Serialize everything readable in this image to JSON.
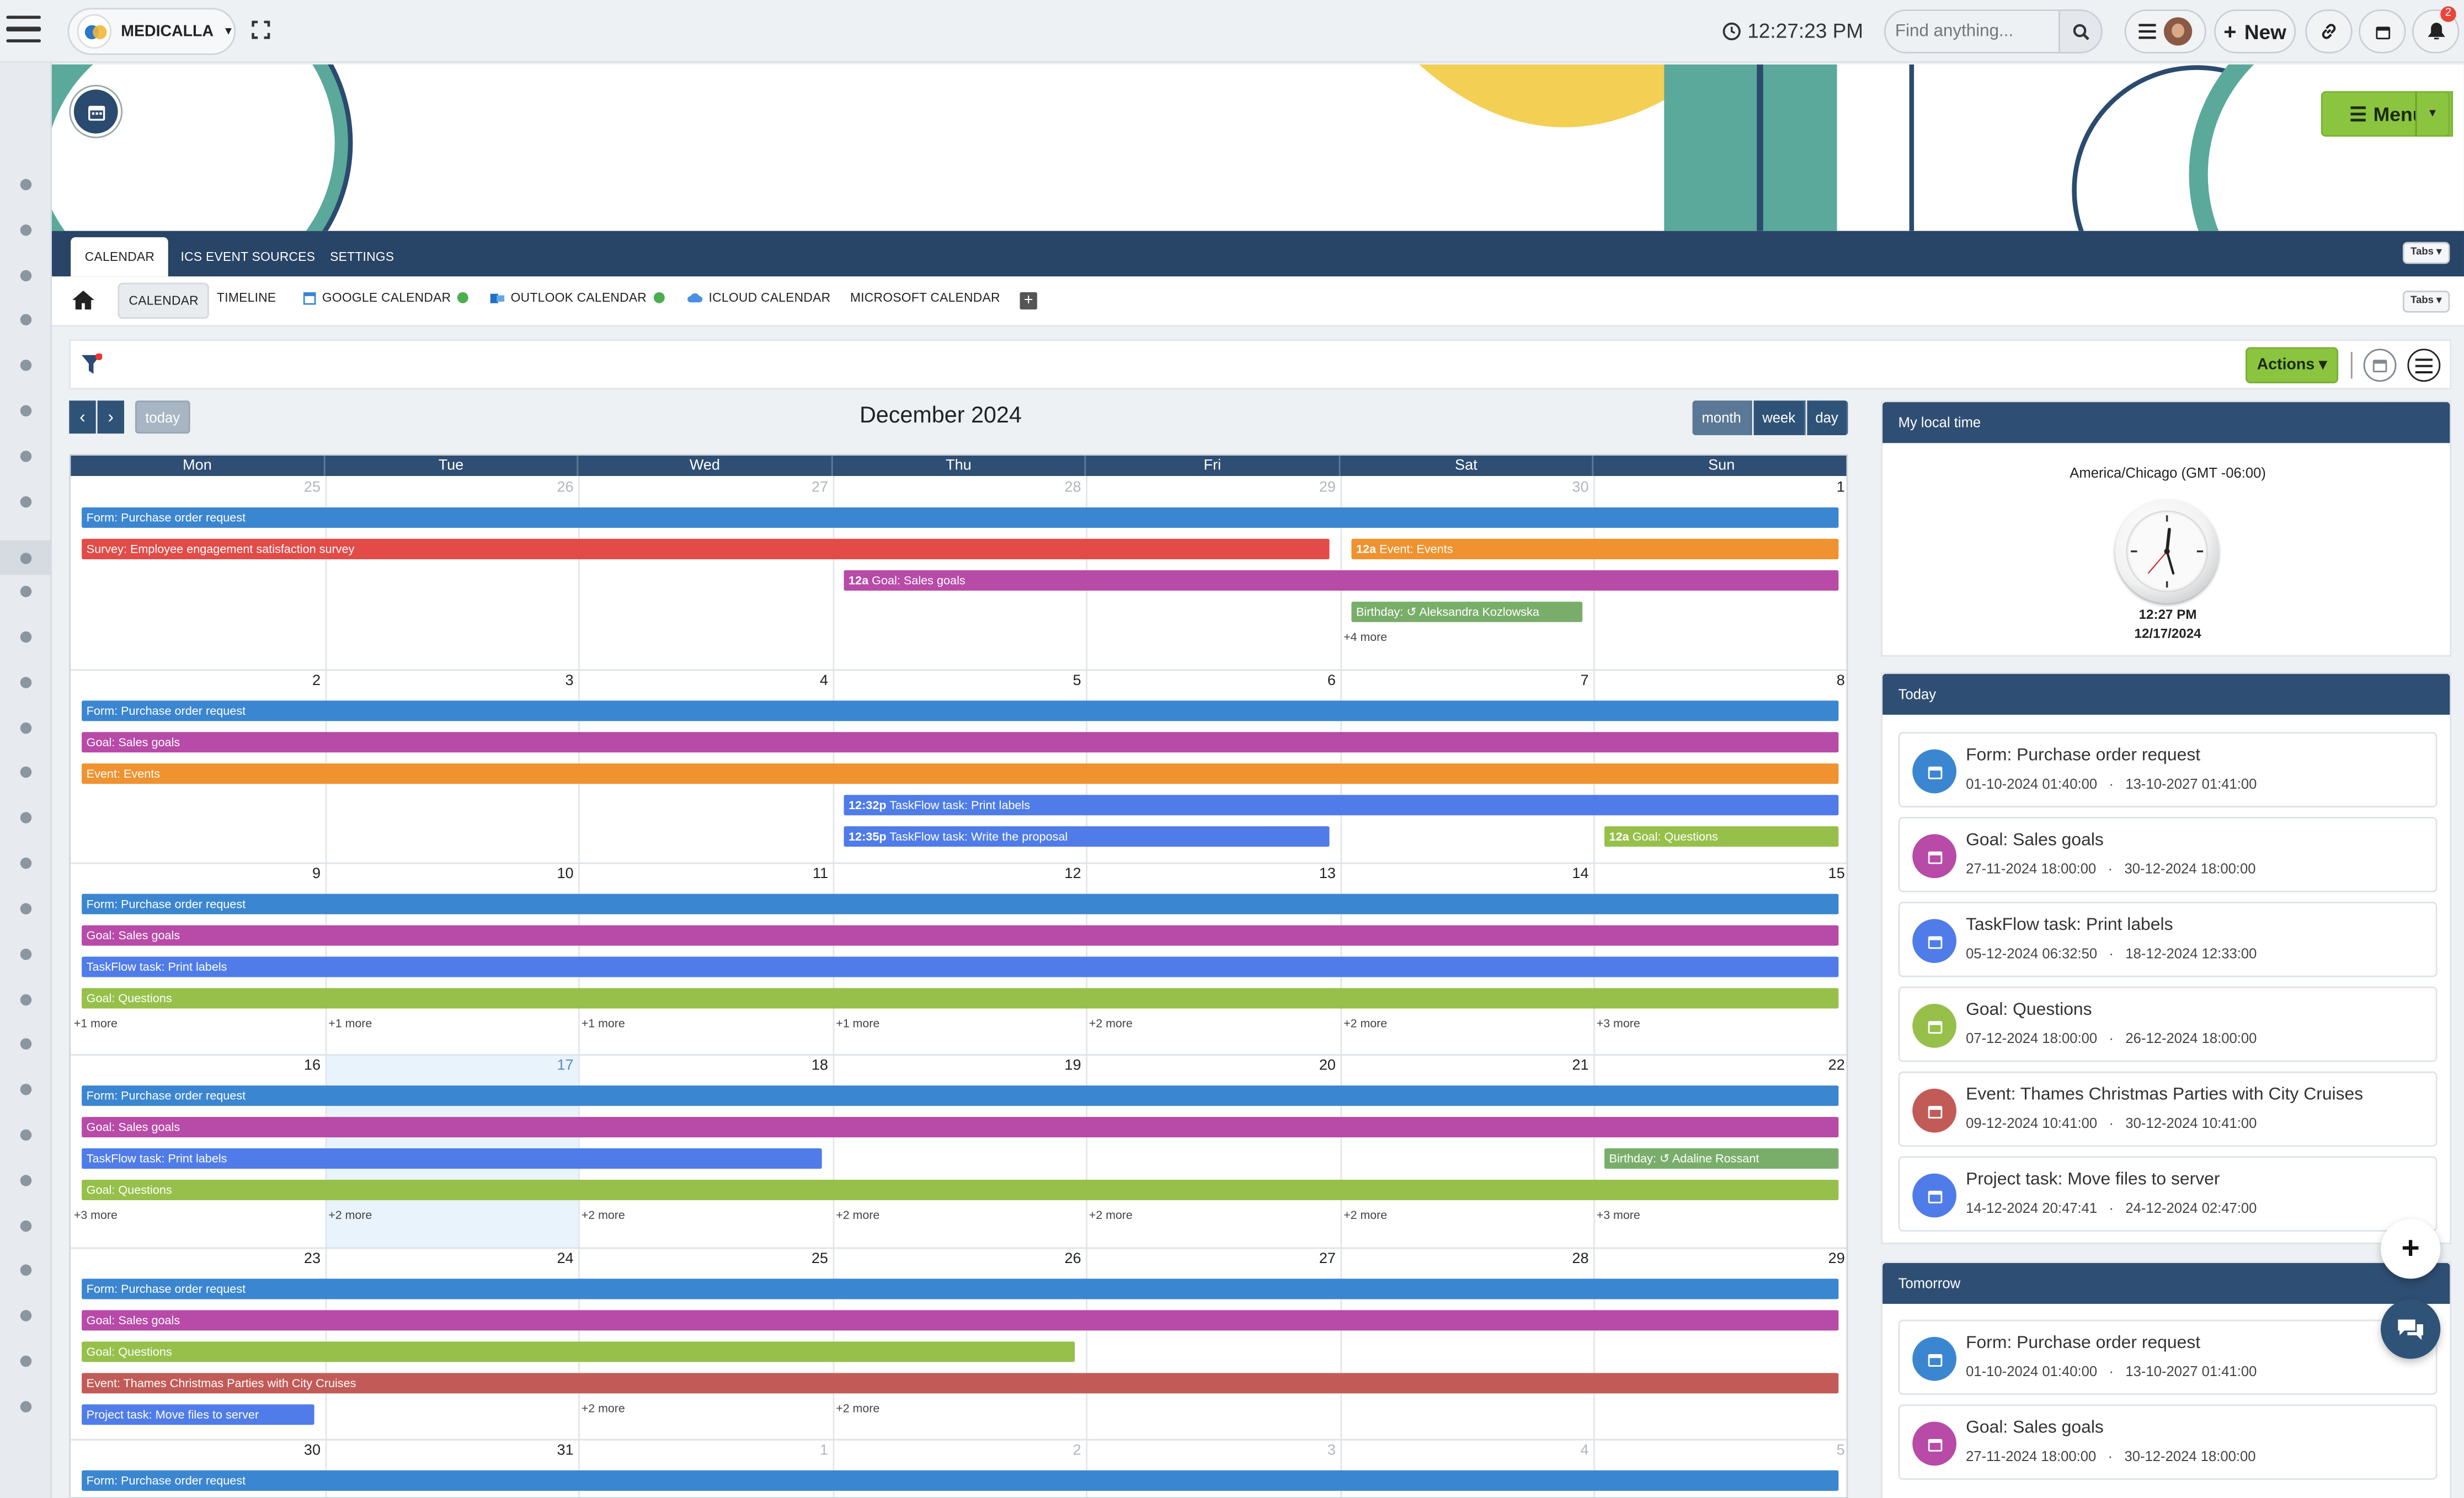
{
  "topbar": {
    "brand": "MEDICALLA",
    "time": "12:27:23 PM",
    "search_placeholder": "Find anything...",
    "new_label": "New",
    "notification_count": "2"
  },
  "banner": {
    "title": "CALENDAR",
    "menu_label": "Menu"
  },
  "tabs_primary": [
    "CALENDAR",
    "ICS EVENT SOURCES",
    "SETTINGS"
  ],
  "tabs_dropdown": "Tabs",
  "tabs_secondary": [
    "CALENDAR",
    "TIMELINE",
    "GOOGLE CALENDAR",
    "OUTLOOK CALENDAR",
    "ICLOUD CALENDAR",
    "MICROSOFT CALENDAR"
  ],
  "toolbar": {
    "actions_label": "Actions",
    "today_label": "today",
    "title": "December 2024",
    "views": [
      "month",
      "week",
      "day"
    ]
  },
  "calendar": {
    "days_of_week": [
      "Mon",
      "Tue",
      "Wed",
      "Thu",
      "Fri",
      "Sat",
      "Sun"
    ],
    "weeks": [
      [
        "25",
        "26",
        "27",
        "28",
        "29",
        "30",
        "1"
      ],
      [
        "2",
        "3",
        "4",
        "5",
        "6",
        "7",
        "8"
      ],
      [
        "9",
        "10",
        "11",
        "12",
        "13",
        "14",
        "15"
      ],
      [
        "16",
        "17",
        "18",
        "19",
        "20",
        "21",
        "22"
      ],
      [
        "23",
        "24",
        "25",
        "26",
        "27",
        "28",
        "29"
      ],
      [
        "30",
        "31",
        "1",
        "2",
        "3",
        "4",
        "5"
      ]
    ],
    "events": [
      {
        "week": 0,
        "start": 0,
        "end": 6,
        "row": 0,
        "color": "#3b86d1",
        "label": "Form: Purchase order request"
      },
      {
        "week": 0,
        "start": 0,
        "end": 4,
        "row": 1,
        "color": "#e34b48",
        "label": "Survey: Employee engagement satisfaction survey"
      },
      {
        "week": 0,
        "start": 5,
        "end": 6,
        "row": 1,
        "color": "#ef922f",
        "time": "12a",
        "label": "Event: Events"
      },
      {
        "week": 0,
        "start": 3,
        "end": 6,
        "row": 2,
        "color": "#b84aa8",
        "time": "12a",
        "label": "Goal: Sales goals"
      },
      {
        "week": 0,
        "start": 5,
        "end": 5,
        "row": 3,
        "color": "#79ae6a",
        "label": "Birthday: ↺ Aleksandra Kozlowska"
      },
      {
        "week": 1,
        "start": 0,
        "end": 6,
        "row": 0,
        "color": "#3b86d1",
        "label": "Form: Purchase order request"
      },
      {
        "week": 1,
        "start": 0,
        "end": 6,
        "row": 1,
        "color": "#b84aa8",
        "label": "Goal: Sales goals"
      },
      {
        "week": 1,
        "start": 0,
        "end": 6,
        "row": 2,
        "color": "#ef922f",
        "label": "Event: Events"
      },
      {
        "week": 1,
        "start": 3,
        "end": 6,
        "row": 3,
        "color": "#4f7ce8",
        "time": "12:32p",
        "label": "TaskFlow task: Print labels"
      },
      {
        "week": 1,
        "start": 3,
        "end": 4,
        "row": 4,
        "color": "#4f7ce8",
        "time": "12:35p",
        "label": "TaskFlow task: Write the proposal"
      },
      {
        "week": 1,
        "start": 6,
        "end": 6,
        "row": 4,
        "color": "#96c04a",
        "time": "12a",
        "label": "Goal: Questions"
      },
      {
        "week": 2,
        "start": 0,
        "end": 6,
        "row": 0,
        "color": "#3b86d1",
        "label": "Form: Purchase order request"
      },
      {
        "week": 2,
        "start": 0,
        "end": 6,
        "row": 1,
        "color": "#b84aa8",
        "label": "Goal: Sales goals"
      },
      {
        "week": 2,
        "start": 0,
        "end": 6,
        "row": 2,
        "color": "#4f7ce8",
        "label": "TaskFlow task: Print labels"
      },
      {
        "week": 2,
        "start": 0,
        "end": 6,
        "row": 3,
        "color": "#96c04a",
        "label": "Goal: Questions"
      },
      {
        "week": 3,
        "start": 0,
        "end": 6,
        "row": 0,
        "color": "#3b86d1",
        "label": "Form: Purchase order request"
      },
      {
        "week": 3,
        "start": 0,
        "end": 6,
        "row": 1,
        "color": "#b84aa8",
        "label": "Goal: Sales goals"
      },
      {
        "week": 3,
        "start": 0,
        "end": 2,
        "row": 2,
        "color": "#4f7ce8",
        "label": "TaskFlow task: Print labels"
      },
      {
        "week": 3,
        "start": 6,
        "end": 6,
        "row": 2,
        "color": "#79ae6a",
        "label": "Birthday: ↺ Adaline Rossant"
      },
      {
        "week": 3,
        "start": 0,
        "end": 6,
        "row": 3,
        "color": "#96c04a",
        "label": "Goal: Questions"
      },
      {
        "week": 4,
        "start": 0,
        "end": 6,
        "row": 0,
        "color": "#3b86d1",
        "label": "Form: Purchase order request"
      },
      {
        "week": 4,
        "start": 0,
        "end": 6,
        "row": 1,
        "color": "#b84aa8",
        "label": "Goal: Sales goals"
      },
      {
        "week": 4,
        "start": 0,
        "end": 3,
        "row": 2,
        "color": "#96c04a",
        "label": "Goal: Questions"
      },
      {
        "week": 4,
        "start": 0,
        "end": 6,
        "row": 3,
        "color": "#c25b57",
        "label": "Event: Thames Christmas Parties with City Cruises"
      },
      {
        "week": 4,
        "start": 0,
        "end": 0,
        "row": 4,
        "color": "#4f7ce8",
        "label": "Project task: Move files to server"
      },
      {
        "week": 5,
        "start": 0,
        "end": 6,
        "row": 0,
        "color": "#3b86d1",
        "label": "Form: Purchase order request"
      }
    ],
    "more_links": [
      {
        "week": 0,
        "day": 5,
        "label": "+4 more"
      },
      {
        "week": 2,
        "day": 0,
        "label": "+1 more"
      },
      {
        "week": 2,
        "day": 1,
        "label": "+1 more"
      },
      {
        "week": 2,
        "day": 2,
        "label": "+1 more"
      },
      {
        "week": 2,
        "day": 3,
        "label": "+1 more"
      },
      {
        "week": 2,
        "day": 4,
        "label": "+2 more"
      },
      {
        "week": 2,
        "day": 5,
        "label": "+2 more"
      },
      {
        "week": 2,
        "day": 6,
        "label": "+3 more"
      },
      {
        "week": 3,
        "day": 0,
        "label": "+3 more"
      },
      {
        "week": 3,
        "day": 1,
        "label": "+2 more"
      },
      {
        "week": 3,
        "day": 2,
        "label": "+2 more"
      },
      {
        "week": 3,
        "day": 3,
        "label": "+2 more"
      },
      {
        "week": 3,
        "day": 4,
        "label": "+2 more"
      },
      {
        "week": 3,
        "day": 5,
        "label": "+2 more"
      },
      {
        "week": 3,
        "day": 6,
        "label": "+3 more"
      },
      {
        "week": 4,
        "day": 2,
        "label": "+2 more"
      },
      {
        "week": 4,
        "day": 3,
        "label": "+2 more"
      }
    ]
  },
  "local_time": {
    "heading": "My local time",
    "timezone": "America/Chicago (GMT -06:00)",
    "time": "12:27 PM",
    "date": "12/17/2024"
  },
  "today_panel": {
    "heading": "Today",
    "items": [
      {
        "title": "Form: Purchase order request",
        "start": "01-10-2024 01:40:00",
        "end": "13-10-2027 01:41:00",
        "color": "#3b86d1"
      },
      {
        "title": "Goal: Sales goals",
        "start": "27-11-2024 18:00:00",
        "end": "30-12-2024 18:00:00",
        "color": "#b84aa8"
      },
      {
        "title": "TaskFlow task: Print labels",
        "start": "05-12-2024 06:32:50",
        "end": "18-12-2024 12:33:00",
        "color": "#4f7ce8"
      },
      {
        "title": "Goal: Questions",
        "start": "07-12-2024 18:00:00",
        "end": "26-12-2024 18:00:00",
        "color": "#96c04a"
      },
      {
        "title": "Event: Thames Christmas Parties with City Cruises",
        "start": "09-12-2024 10:41:00",
        "end": "30-12-2024 10:41:00",
        "color": "#c25b57"
      },
      {
        "title": "Project task: Move files to server",
        "start": "14-12-2024 20:47:41",
        "end": "24-12-2024 02:47:00",
        "color": "#4f7ce8"
      }
    ]
  },
  "tomorrow_panel": {
    "heading": "Tomorrow",
    "items": [
      {
        "title": "Form: Purchase order request",
        "start": "01-10-2024 01:40:00",
        "end": "13-10-2027 01:41:00",
        "color": "#3b86d1"
      },
      {
        "title": "Goal: Sales goals",
        "start": "27-11-2024 18:00:00",
        "end": "30-12-2024 18:00:00",
        "color": "#b84aa8"
      }
    ]
  },
  "colors": {
    "nav": "#284466",
    "accent_green": "#8bc53f"
  }
}
